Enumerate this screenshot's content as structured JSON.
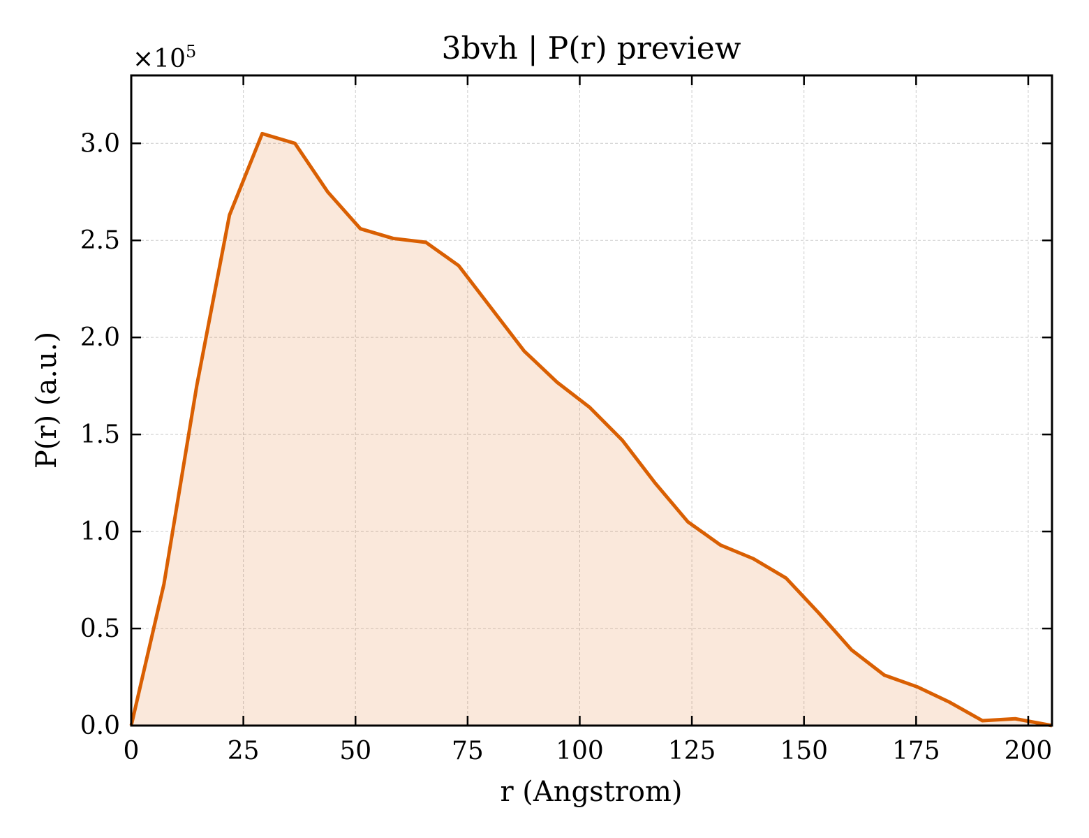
{
  "chart_data": {
    "type": "area",
    "title": "3bvh | P(r) preview",
    "xlabel": "r (Angstrom)",
    "ylabel": "P(r) (a.u.)",
    "y_multiplier_label": "×10",
    "y_multiplier_exponent": "5",
    "xlim": [
      0,
      205.3
    ],
    "ylim": [
      0,
      3.35
    ],
    "y_scale_factor": 100000,
    "x_ticks": [
      0,
      25,
      50,
      75,
      100,
      125,
      150,
      175,
      200
    ],
    "x_tick_labels": [
      "0",
      "25",
      "50",
      "75",
      "100",
      "125",
      "150",
      "175",
      "200"
    ],
    "y_ticks": [
      0,
      0.5,
      1.0,
      1.5,
      2.0,
      2.5,
      3.0
    ],
    "y_tick_labels": [
      "0.0",
      "0.5",
      "1.0",
      "1.5",
      "2.0",
      "2.5",
      "3.0"
    ],
    "grid": true,
    "line_color": "#d95f02",
    "fill_color": "#d95f02",
    "fill_opacity": 0.14,
    "series": [
      {
        "x": [
          0,
          7.3,
          14.6,
          21.9,
          29.2,
          36.5,
          43.8,
          51.1,
          58.4,
          65.7,
          73.0,
          80.3,
          87.6,
          94.9,
          102.2,
          109.5,
          116.8,
          124.1,
          131.4,
          138.7,
          146.0,
          153.3,
          160.6,
          167.9,
          175.2,
          182.5,
          189.8,
          197.1,
          205.3
        ],
        "y": [
          0.0,
          0.73,
          1.75,
          2.63,
          3.05,
          3.0,
          2.75,
          2.56,
          2.51,
          2.49,
          2.37,
          2.15,
          1.93,
          1.77,
          1.64,
          1.47,
          1.25,
          1.05,
          0.93,
          0.86,
          0.76,
          0.58,
          0.39,
          0.26,
          0.2,
          0.12,
          0.025,
          0.035,
          0.0
        ]
      }
    ]
  }
}
